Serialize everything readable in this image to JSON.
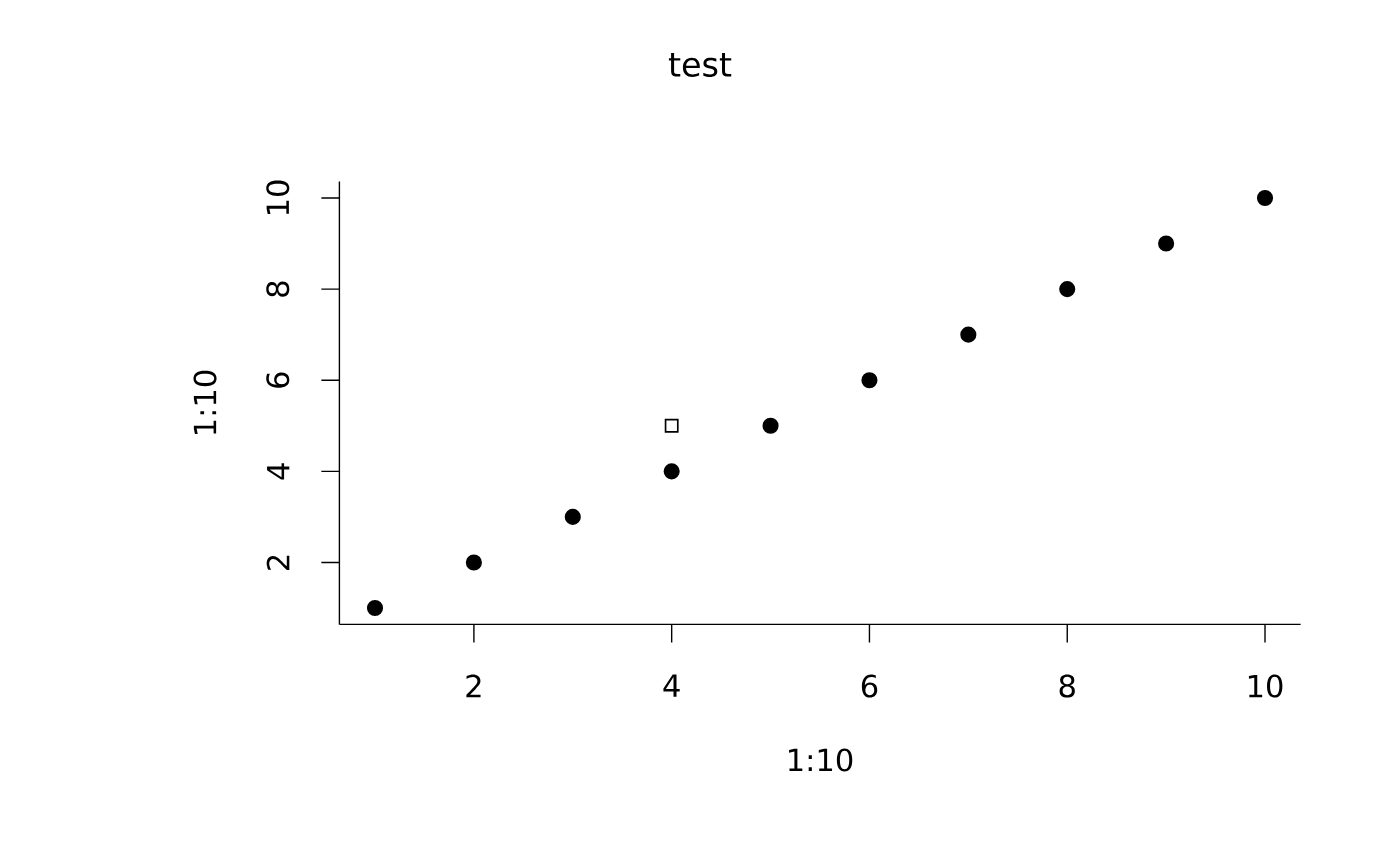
{
  "chart_data": {
    "type": "scatter",
    "title": "test",
    "xlabel": "1:10",
    "ylabel": "1:10",
    "x": [
      1,
      2,
      3,
      4,
      5,
      6,
      7,
      8,
      9,
      10
    ],
    "series": [
      {
        "color": "#000000",
        "marker": "circle",
        "values": [
          1,
          2,
          3,
          4,
          5,
          6,
          7,
          8,
          9,
          10
        ]
      },
      {
        "color": "#000000",
        "marker": "square",
        "x": [
          4
        ],
        "values": [
          5
        ]
      }
    ],
    "xlim": [
      0.64,
      10.36
    ],
    "ylim": [
      0.64,
      10.36
    ],
    "xticks": [
      2,
      4,
      6,
      8,
      10
    ],
    "yticks": [
      2,
      4,
      6,
      8,
      10
    ]
  }
}
